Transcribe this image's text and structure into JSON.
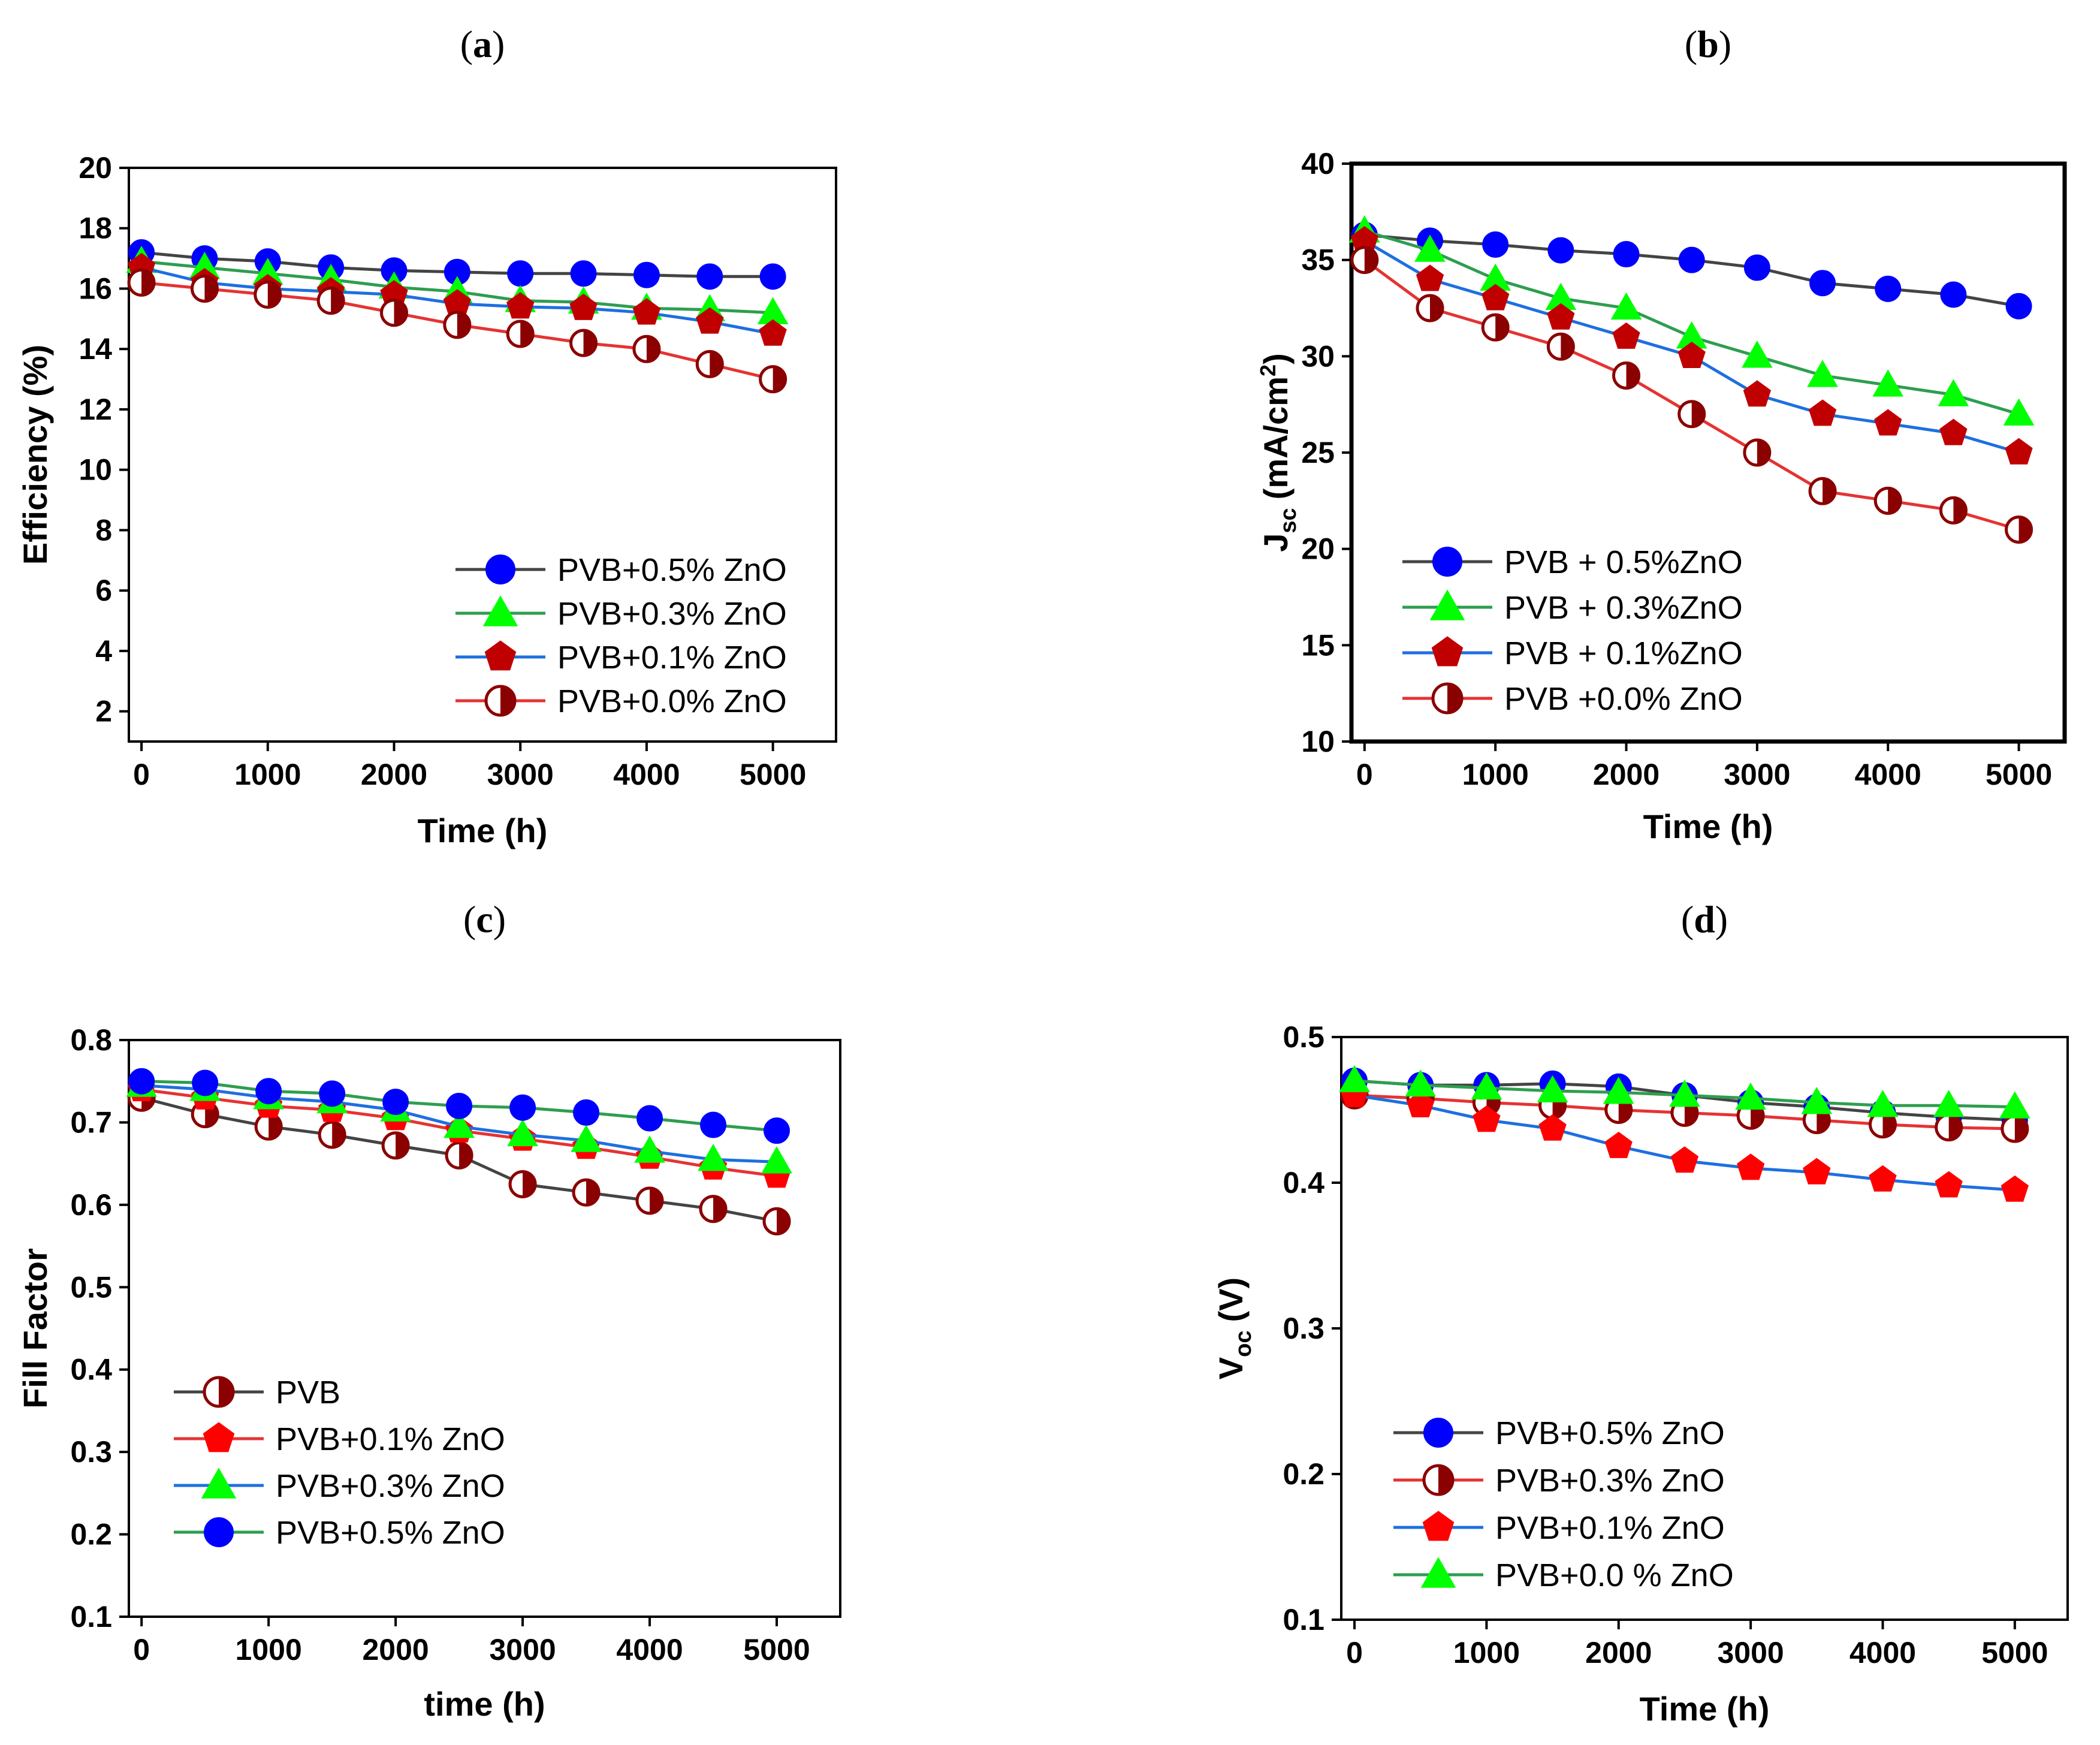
{
  "chart_data": [
    {
      "panel": "a",
      "type": "line",
      "title": "",
      "xlabel": "Time (h)",
      "ylabel": "Efficiency (%)",
      "xlim": [
        -100,
        5500
      ],
      "ylim": [
        1,
        20
      ],
      "xticks": [
        0,
        1000,
        2000,
        3000,
        4000,
        5000
      ],
      "yticks": [
        2,
        4,
        6,
        8,
        10,
        12,
        14,
        16,
        18,
        20
      ],
      "legend": "bottom-right",
      "x": [
        0,
        500,
        1000,
        1500,
        2000,
        2500,
        3000,
        3500,
        4000,
        4500,
        5000
      ],
      "series": [
        {
          "name": "PVB+0.5% ZnO",
          "line_color": "#444444",
          "marker": "circle",
          "fill": "#0000ff",
          "values": [
            17.2,
            17.0,
            16.9,
            16.7,
            16.6,
            16.55,
            16.5,
            16.5,
            16.45,
            16.4,
            16.4
          ]
        },
        {
          "name": "PVB+0.3% ZnO",
          "line_color": "#2e9e4f",
          "marker": "triangle",
          "fill": "#00ff00",
          "values": [
            16.9,
            16.7,
            16.5,
            16.3,
            16.05,
            15.9,
            15.6,
            15.55,
            15.35,
            15.3,
            15.2
          ]
        },
        {
          "name": "PVB+0.1% ZnO",
          "line_color": "#1e6fe0",
          "marker": "pentagon",
          "fill": "#c00000",
          "values": [
            16.7,
            16.2,
            16.0,
            15.9,
            15.8,
            15.5,
            15.4,
            15.35,
            15.2,
            14.9,
            14.5
          ]
        },
        {
          "name": "PVB+0.0% ZnO",
          "line_color": "#e53333",
          "marker": "halfcircle",
          "fill": "#8b0000",
          "values": [
            16.2,
            16.0,
            15.8,
            15.6,
            15.2,
            14.8,
            14.5,
            14.2,
            14.0,
            13.5,
            13.0
          ]
        }
      ]
    },
    {
      "panel": "b",
      "type": "line",
      "title": "",
      "xlabel": "Time (h)",
      "ylabel_main": "J",
      "ylabel_sub": "sc",
      "ylabel_unit": "(mA/cm",
      "ylabel_sup": "2",
      "ylabel_end": ")",
      "xlim": [
        -100,
        5350
      ],
      "ylim": [
        10,
        40
      ],
      "xticks": [
        0,
        1000,
        2000,
        3000,
        4000,
        5000
      ],
      "yticks": [
        10,
        15,
        20,
        25,
        30,
        35,
        40
      ],
      "legend": "bottom-left",
      "x": [
        0,
        500,
        1000,
        1500,
        2000,
        2500,
        3000,
        3500,
        4000,
        4500,
        5000
      ],
      "series": [
        {
          "name": "PVB + 0.5%ZnO",
          "line_color": "#444444",
          "marker": "circle",
          "fill": "#0000ff",
          "values": [
            36.3,
            36.0,
            35.8,
            35.5,
            35.3,
            35.0,
            34.6,
            33.8,
            33.5,
            33.2,
            32.6
          ]
        },
        {
          "name": "PVB + 0.3%ZnO",
          "line_color": "#2e9e4f",
          "marker": "triangle",
          "fill": "#00ff00",
          "values": [
            36.5,
            35.5,
            34.0,
            33.0,
            32.5,
            31.0,
            30.0,
            29.0,
            28.5,
            28.0,
            27.0
          ]
        },
        {
          "name": "PVB + 0.1%ZnO",
          "line_color": "#1e6fe0",
          "marker": "pentagon",
          "fill": "#c00000",
          "values": [
            36.0,
            34.0,
            33.0,
            32.0,
            31.0,
            30.0,
            28.0,
            27.0,
            26.5,
            26.0,
            25.0
          ]
        },
        {
          "name": "PVB +0.0% ZnO",
          "line_color": "#e53333",
          "marker": "halfcircle",
          "fill": "#8b0000",
          "values": [
            35.0,
            32.5,
            31.5,
            30.5,
            29.0,
            27.0,
            25.0,
            23.0,
            22.5,
            22.0,
            21.0
          ]
        }
      ]
    },
    {
      "panel": "c",
      "type": "line",
      "title": "",
      "xlabel": "time (h)",
      "ylabel": "Fill Factor",
      "xlim": [
        -100,
        5500
      ],
      "ylim": [
        0.1,
        0.8
      ],
      "xticks": [
        0,
        1000,
        2000,
        3000,
        4000,
        5000
      ],
      "yticks": [
        0.1,
        0.2,
        0.3,
        0.4,
        0.5,
        0.6,
        0.7,
        0.8
      ],
      "legend": "bottom-left",
      "x": [
        0,
        500,
        1000,
        1500,
        2000,
        2500,
        3000,
        3500,
        4000,
        4500,
        5000
      ],
      "series": [
        {
          "name": "PVB",
          "line_color": "#444444",
          "marker": "halfcircle",
          "fill": "#8b0000",
          "values": [
            0.73,
            0.71,
            0.695,
            0.685,
            0.672,
            0.66,
            0.625,
            0.615,
            0.605,
            0.595,
            0.58
          ]
        },
        {
          "name": "PVB+0.1% ZnO",
          "line_color": "#e53333",
          "marker": "pentagon",
          "fill": "#ff0000",
          "values": [
            0.74,
            0.73,
            0.72,
            0.715,
            0.705,
            0.69,
            0.68,
            0.67,
            0.658,
            0.645,
            0.635
          ]
        },
        {
          "name": "PVB+0.3% ZnO",
          "line_color": "#1e6fe0",
          "marker": "triangle",
          "fill": "#00ff00",
          "values": [
            0.745,
            0.74,
            0.73,
            0.725,
            0.715,
            0.695,
            0.685,
            0.678,
            0.665,
            0.655,
            0.652
          ]
        },
        {
          "name": "PVB+0.5% ZnO",
          "line_color": "#2e9e4f",
          "marker": "circle",
          "fill": "#0000ff",
          "values": [
            0.75,
            0.748,
            0.738,
            0.735,
            0.725,
            0.72,
            0.718,
            0.712,
            0.705,
            0.697,
            0.69
          ]
        }
      ]
    },
    {
      "panel": "d",
      "type": "line",
      "title": "",
      "xlabel": "Time (h)",
      "ylabel_main": "V",
      "ylabel_sub": "oc",
      "ylabel_unit": "(V)",
      "xlim": [
        -100,
        5400
      ],
      "ylim": [
        0.1,
        0.5
      ],
      "xticks": [
        0,
        1000,
        2000,
        3000,
        4000,
        5000
      ],
      "yticks": [
        0.1,
        0.2,
        0.3,
        0.4,
        0.5
      ],
      "legend": "bottom-left",
      "x": [
        0,
        500,
        1000,
        1500,
        2000,
        2500,
        3000,
        3500,
        4000,
        4500,
        5000
      ],
      "series": [
        {
          "name": "PVB+0.5% ZnO",
          "line_color": "#444444",
          "marker": "circle",
          "fill": "#0000ff",
          "values": [
            0.47,
            0.467,
            0.467,
            0.468,
            0.466,
            0.46,
            0.455,
            0.452,
            0.448,
            0.445,
            0.443
          ]
        },
        {
          "name": "PVB+0.3% ZnO",
          "line_color": "#e53333",
          "marker": "halfcircle",
          "fill": "#8b0000",
          "values": [
            0.46,
            0.458,
            0.455,
            0.453,
            0.45,
            0.448,
            0.446,
            0.443,
            0.44,
            0.438,
            0.437
          ]
        },
        {
          "name": "PVB+0.1% ZnO",
          "line_color": "#1e6fe0",
          "marker": "pentagon",
          "fill": "#ff0000",
          "values": [
            0.46,
            0.453,
            0.443,
            0.437,
            0.425,
            0.415,
            0.41,
            0.407,
            0.402,
            0.398,
            0.395
          ]
        },
        {
          "name": "PVB+0.0 % ZnO",
          "line_color": "#2e9e4f",
          "marker": "triangle",
          "fill": "#00ff00",
          "values": [
            0.47,
            0.467,
            0.465,
            0.463,
            0.462,
            0.46,
            0.458,
            0.455,
            0.453,
            0.453,
            0.452
          ]
        }
      ]
    }
  ]
}
